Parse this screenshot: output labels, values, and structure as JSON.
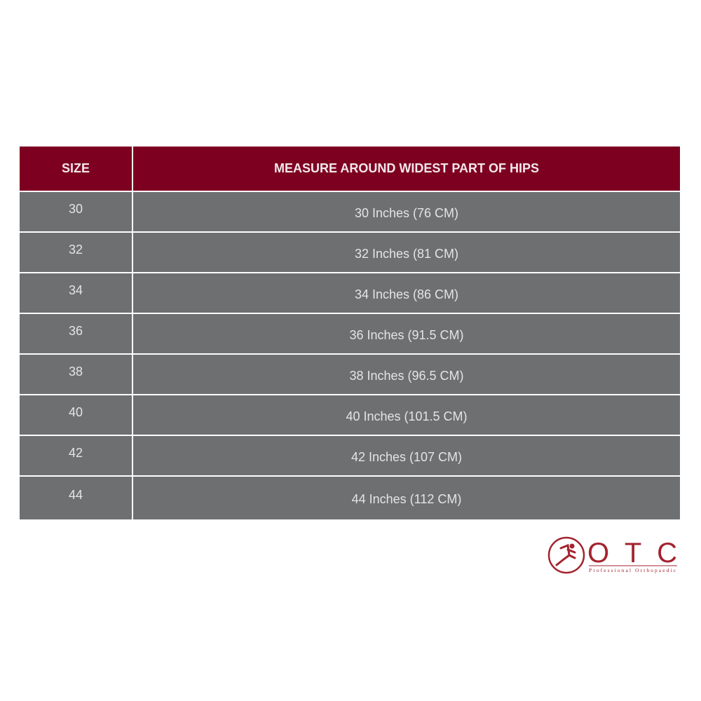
{
  "table": {
    "headers": [
      "SIZE",
      "MEASURE AROUND WIDEST PART OF HIPS"
    ],
    "rows": [
      [
        "30",
        "30 Inches (76 CM)"
      ],
      [
        "32",
        "32 Inches (81 CM)"
      ],
      [
        "34",
        "34 Inches (86 CM)"
      ],
      [
        "36",
        "36 Inches (91.5 CM)"
      ],
      [
        "38",
        "38 Inches (96.5 CM)"
      ],
      [
        "40",
        "40 Inches (101.5 CM)"
      ],
      [
        "42",
        "42 Inches (107 CM)"
      ],
      [
        "44",
        "44 Inches (112 CM)"
      ]
    ]
  },
  "logo": {
    "brand": "OTC",
    "tagline": "Professional Orthopaedic",
    "icon": "runner-icon"
  },
  "colors": {
    "header": "#7e0021",
    "row": "#6e6f71",
    "brand": "#a3232f"
  }
}
